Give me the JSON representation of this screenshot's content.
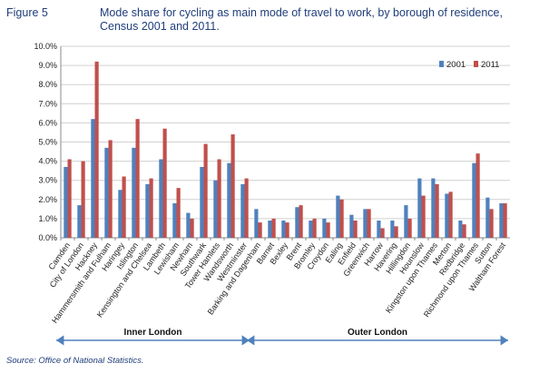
{
  "figure": {
    "label": "Figure 5",
    "title": "Mode share for cycling as main mode of travel to work, by borough of residence, Census 2001 and 2011.",
    "source": "Source: Office of National Statistics."
  },
  "colors": {
    "s2001": "#4f81bd",
    "s2011": "#c0504d",
    "grid": "#d0d0d0",
    "axis": "#888888",
    "arrow": "#4f81bd"
  },
  "chart_data": {
    "type": "bar",
    "title": "Mode share for cycling as main mode of travel to work, by borough of residence, Census 2001 and 2011.",
    "xlabel": "",
    "ylabel": "",
    "ylim": [
      0,
      10
    ],
    "yticks": [
      "0.0%",
      "1.0%",
      "2.0%",
      "3.0%",
      "4.0%",
      "5.0%",
      "6.0%",
      "7.0%",
      "8.0%",
      "9.0%",
      "10.0%"
    ],
    "grid": true,
    "legend": "top-right",
    "categories": [
      "Camden",
      "City of London",
      "Hackney",
      "Hammersmith and Fulham",
      "Haringey",
      "Islington",
      "Kensington and Chelsea",
      "Lambeth",
      "Lewisham",
      "Newham",
      "Southwark",
      "Tower Hamlets",
      "Wandsworth",
      "Westminster",
      "Barking and Dagenham",
      "Barnet",
      "Bexley",
      "Brent",
      "Bromley",
      "Croydon",
      "Ealing",
      "Enfield",
      "Greenwich",
      "Harrow",
      "Havering",
      "Hillingdon",
      "Hounslow",
      "Kingston upon Thames",
      "Merton",
      "Redbridge",
      "Richmond upon Thames",
      "Sutton",
      "Waltham Forest"
    ],
    "series": [
      {
        "name": "2001",
        "values": [
          3.7,
          1.7,
          6.2,
          4.7,
          2.5,
          4.7,
          2.8,
          4.1,
          1.8,
          1.3,
          3.7,
          3.0,
          3.9,
          2.8,
          1.5,
          0.9,
          0.9,
          1.6,
          0.9,
          1.0,
          2.2,
          1.2,
          1.5,
          0.9,
          0.9,
          1.7,
          3.1,
          3.1,
          2.3,
          0.9,
          3.9,
          2.1,
          1.8
        ]
      },
      {
        "name": "2011",
        "values": [
          4.1,
          4.0,
          9.2,
          5.1,
          3.2,
          6.2,
          3.1,
          5.7,
          2.6,
          1.0,
          4.9,
          4.1,
          5.4,
          3.1,
          0.8,
          1.0,
          0.8,
          1.7,
          1.0,
          0.8,
          2.0,
          0.9,
          1.5,
          0.5,
          0.6,
          1.0,
          2.2,
          2.8,
          2.4,
          0.7,
          4.4,
          1.5,
          1.8
        ]
      }
    ],
    "groups": [
      {
        "label": "Inner London",
        "from": 0,
        "to": 13
      },
      {
        "label": "Outer London",
        "from": 14,
        "to": 32
      }
    ]
  }
}
